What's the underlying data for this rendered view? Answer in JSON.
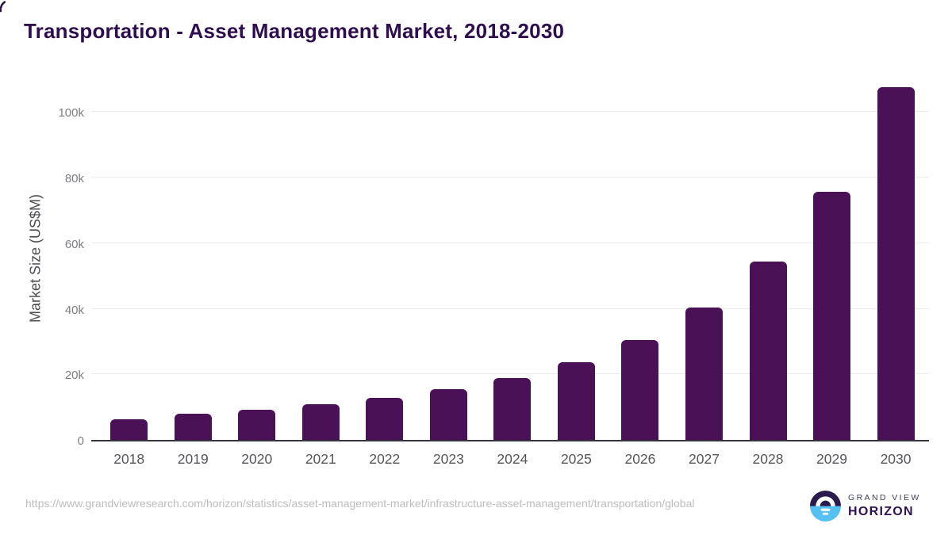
{
  "page": {
    "title": "Transportation - Asset Management Market, 2018-2030",
    "source_url": "https://www.grandviewresearch.com/horizon/statistics/asset-management-market/infrastructure-asset-management/transportation/global"
  },
  "logo": {
    "brand_top": "GRAND VIEW",
    "brand_bottom": "HORIZON",
    "icon": "horizon-sun-icon"
  },
  "colors": {
    "bar": "#4a1157",
    "title_text": "#2f0e4d",
    "axis_line": "#35353f",
    "gridline": "#ececec",
    "y_tick_label": "#7d7d82",
    "x_tick_label": "#55555a",
    "footer_text": "#bdbdbd",
    "logo_dark": "#2b1b4d",
    "logo_blue": "#56c1f0"
  },
  "chart_data": {
    "type": "bar",
    "title": "Transportation - Asset Management Market, 2018-2030",
    "xlabel": "",
    "ylabel": "Market Size (US$M)",
    "unit": "US$ million",
    "categories": [
      "2018",
      "2019",
      "2020",
      "2021",
      "2022",
      "2023",
      "2024",
      "2025",
      "2026",
      "2027",
      "2028",
      "2029",
      "2030"
    ],
    "values": [
      6400,
      7900,
      9200,
      10900,
      12700,
      15500,
      18800,
      23700,
      30400,
      40300,
      54500,
      75700,
      107600
    ],
    "ylim": [
      0,
      111700
    ],
    "yticks": {
      "values": [
        0,
        20000,
        40000,
        60000,
        80000,
        100000
      ],
      "labels": [
        "0",
        "20k",
        "40k",
        "60k",
        "80k",
        "100k"
      ]
    },
    "grid": "horizontal",
    "legend": "none",
    "bar_color": "#4a1157"
  }
}
